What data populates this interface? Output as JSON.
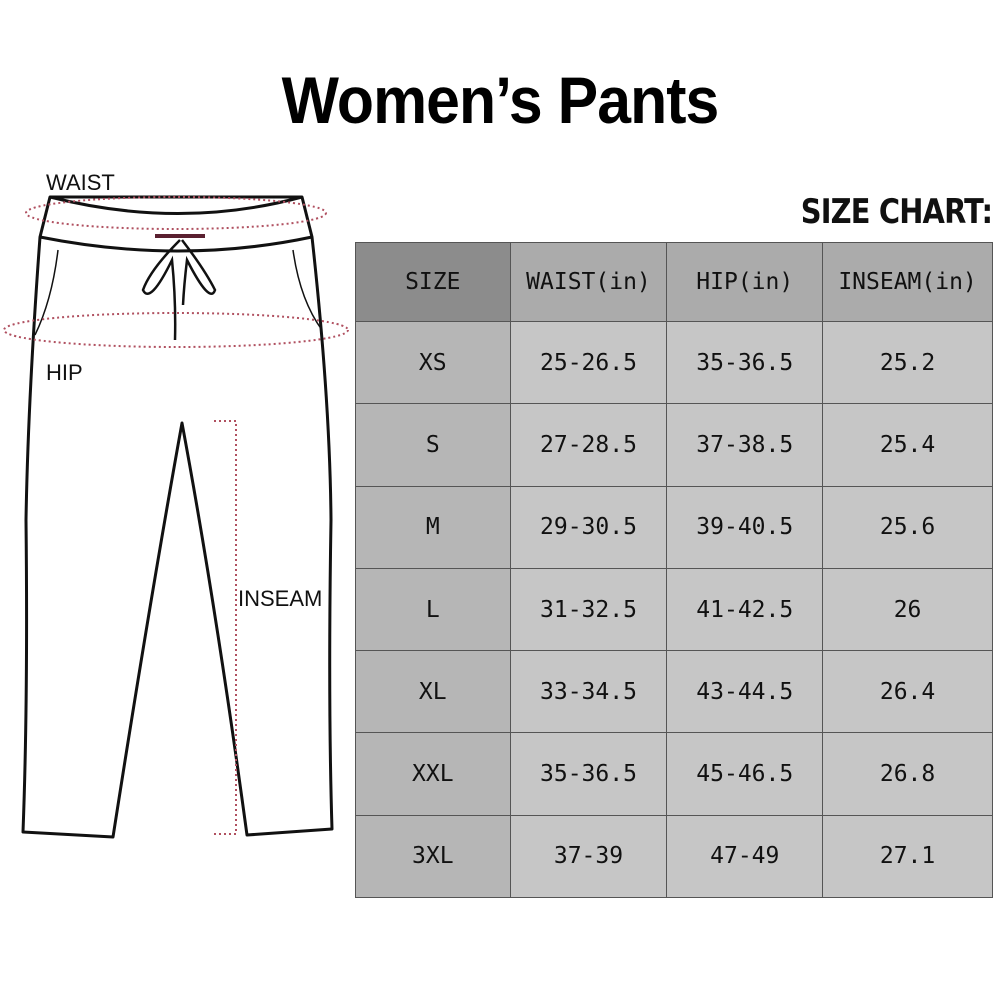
{
  "title": "Women’s Pants",
  "size_chart_label": "SIZE CHART:",
  "diagram_labels": {
    "waist": "WAIST",
    "hip": "HIP",
    "inseam": "INSEAM"
  },
  "table": {
    "headers": [
      "SIZE",
      "WAIST(in)",
      "HIP(in)",
      "INSEAM(in)"
    ],
    "rows": [
      [
        "XS",
        "25-26.5",
        "35-36.5",
        "25.2"
      ],
      [
        "S",
        "27-28.5",
        "37-38.5",
        "25.4"
      ],
      [
        "M",
        "29-30.5",
        "39-40.5",
        "25.6"
      ],
      [
        "L",
        "31-32.5",
        "41-42.5",
        "26"
      ],
      [
        "XL",
        "33-34.5",
        "43-44.5",
        "26.4"
      ],
      [
        "XXL",
        "35-36.5",
        "45-46.5",
        "26.8"
      ],
      [
        "3XL",
        "37-39",
        "47-49",
        "27.1"
      ]
    ]
  },
  "colors": {
    "measure_line": "#b05060"
  }
}
